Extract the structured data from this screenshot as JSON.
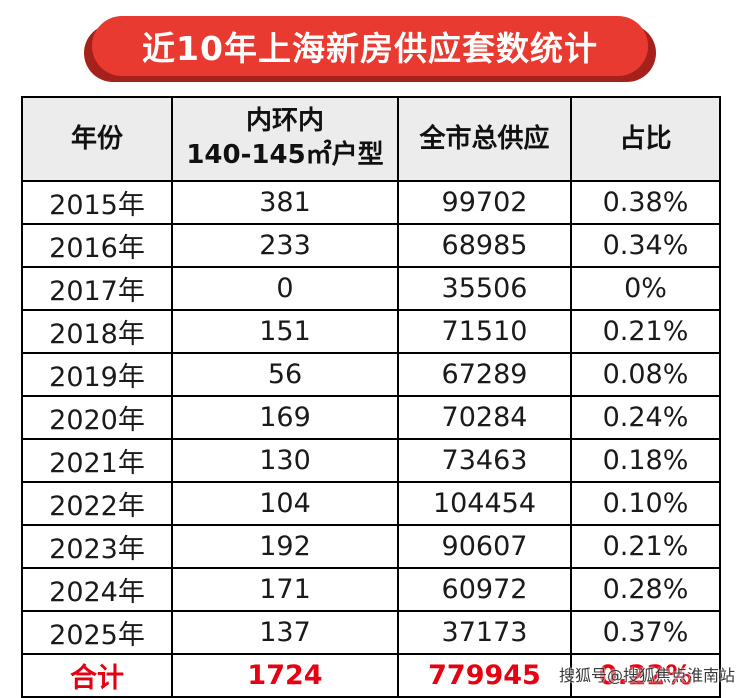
{
  "banner": {
    "title": "近10年上海新房供应套数统计",
    "ribbon_color": "#e93a31",
    "ribbon_shadow_color": "#a6211b"
  },
  "table": {
    "header": {
      "year": "年份",
      "inner_line1": "内环内",
      "inner_line2": "140-145㎡户型",
      "citywide": "全市总供应",
      "ratio": "占比"
    },
    "total_color": "#e60012",
    "header_bg": "#ececec"
  },
  "chart_data": {
    "type": "table",
    "title": "近10年上海新房供应套数统计",
    "columns": [
      "年份",
      "内环内 140-145㎡户型",
      "全市总供应",
      "占比"
    ],
    "rows": [
      [
        "2015年",
        "381",
        "99702",
        "0.38%"
      ],
      [
        "2016年",
        "233",
        "68985",
        "0.34%"
      ],
      [
        "2017年",
        "0",
        "35506",
        "0%"
      ],
      [
        "2018年",
        "151",
        "71510",
        "0.21%"
      ],
      [
        "2019年",
        "56",
        "67289",
        "0.08%"
      ],
      [
        "2020年",
        "169",
        "70284",
        "0.24%"
      ],
      [
        "2021年",
        "130",
        "73463",
        "0.18%"
      ],
      [
        "2022年",
        "104",
        "104454",
        "0.10%"
      ],
      [
        "2023年",
        "192",
        "90607",
        "0.21%"
      ],
      [
        "2024年",
        "171",
        "60972",
        "0.28%"
      ],
      [
        "2025年",
        "137",
        "37173",
        "0.37%"
      ]
    ],
    "total_row": [
      "合计",
      "1724",
      "779945",
      "0.22%"
    ]
  },
  "watermark": "搜狐号@搜狐焦点淮南站"
}
